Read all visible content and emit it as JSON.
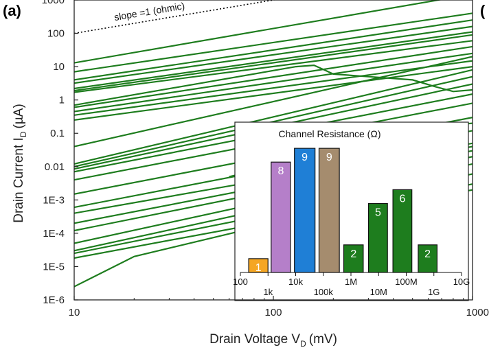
{
  "panel_label": "(a)",
  "next_panel_label": "(",
  "chart_data": {
    "type": "line",
    "x_scale": "log",
    "y_scale": "log",
    "xlim": [
      10,
      1000
    ],
    "ylim": [
      1e-06,
      1000
    ],
    "xlabel": "Drain Voltage V",
    "xlabel_sub": "D",
    "xlabel_unit": "(mV)",
    "ylabel": "Drain Current I",
    "ylabel_sub": "D",
    "ylabel_unit": "(µA)",
    "x_ticks": [
      {
        "value": 10,
        "label": "10"
      },
      {
        "value": 100,
        "label": "100"
      },
      {
        "value": 1000,
        "label": "1000"
      }
    ],
    "y_ticks": [
      {
        "value": 1000,
        "label": "1000"
      },
      {
        "value": 100,
        "label": "100"
      },
      {
        "value": 10,
        "label": "10"
      },
      {
        "value": 1,
        "label": "1"
      },
      {
        "value": 0.1,
        "label": "0.1"
      },
      {
        "value": 0.01,
        "label": "0.01"
      },
      {
        "value": 0.001,
        "label": "1E-3"
      },
      {
        "value": 0.0001,
        "label": "1E-4"
      },
      {
        "value": 1e-05,
        "label": "1E-5"
      },
      {
        "value": 1e-06,
        "label": "1E-6"
      }
    ],
    "line_color": "#1e7d1e",
    "reference_line": {
      "label": "slope =1 (ohmic)",
      "x": [
        10,
        200
      ],
      "y": [
        100,
        2000
      ],
      "style": "dotted"
    },
    "series": [
      {
        "x": [
          10,
          1000
        ],
        "y": [
          13,
          1500
        ]
      },
      {
        "x": [
          10,
          1000
        ],
        "y": [
          7,
          400
        ]
      },
      {
        "x": [
          10,
          1000
        ],
        "y": [
          4,
          250
        ]
      },
      {
        "x": [
          10,
          1000
        ],
        "y": [
          3.2,
          160
        ]
      },
      {
        "x": [
          10,
          1000
        ],
        "y": [
          2.2,
          110
        ]
      },
      {
        "x": [
          10,
          1000
        ],
        "y": [
          1.9,
          90
        ]
      },
      {
        "x": [
          10,
          1000
        ],
        "y": [
          1.7,
          60
        ]
      },
      {
        "x": [
          10,
          1000
        ],
        "y": [
          0.6,
          40
        ]
      },
      {
        "x": [
          10,
          1000
        ],
        "y": [
          0.45,
          25
        ]
      },
      {
        "x": [
          10,
          1000
        ],
        "y": [
          0.35,
          15
        ]
      },
      {
        "x": [
          10,
          1000
        ],
        "y": [
          0.25,
          10
        ]
      },
      {
        "x": [
          10,
          1000
        ],
        "y": [
          0.04,
          20
        ]
      },
      {
        "x": [
          10,
          1000
        ],
        "y": [
          0.012,
          8
        ]
      },
      {
        "x": [
          10,
          1000
        ],
        "y": [
          0.01,
          5
        ]
      },
      {
        "x": [
          10,
          1000
        ],
        "y": [
          0.0085,
          3
        ]
      },
      {
        "x": [
          10,
          1000
        ],
        "y": [
          0.007,
          1.5
        ]
      },
      {
        "x": [
          10,
          1000
        ],
        "y": [
          0.004,
          0.8
        ]
      },
      {
        "x": [
          10,
          1000
        ],
        "y": [
          0.0015,
          0.3
        ]
      },
      {
        "x": [
          10,
          1000
        ],
        "y": [
          0.0006,
          0.12
        ]
      },
      {
        "x": [
          10,
          1000
        ],
        "y": [
          0.0004,
          0.05
        ]
      },
      {
        "x": [
          10,
          1000
        ],
        "y": [
          0.0002,
          0.04
        ]
      },
      {
        "x": [
          10,
          1000
        ],
        "y": [
          0.00012,
          0.03
        ]
      },
      {
        "x": [
          10,
          1000
        ],
        "y": [
          5e-05,
          0.02
        ]
      },
      {
        "x": [
          10,
          1000
        ],
        "y": [
          3e-05,
          0.012
        ]
      },
      {
        "x": [
          10,
          1000
        ],
        "y": [
          2.5e-05,
          0.006
        ]
      },
      {
        "x": [
          10,
          1000
        ],
        "y": [
          1.8e-05,
          0.003
        ]
      },
      {
        "x": [
          10,
          20,
          100,
          1000
        ],
        "y": [
          2.5e-06,
          2e-05,
          0.0002,
          0.002
        ]
      },
      {
        "x": [
          10,
          130,
          160,
          180,
          200,
          300,
          500,
          650,
          800,
          1000
        ],
        "y": [
          0.7,
          10,
          11,
          8,
          6,
          5,
          4,
          2.5,
          1.8,
          2
        ]
      },
      {
        "x": [
          60,
          100,
          150,
          200,
          300,
          500,
          700,
          800,
          1000
        ],
        "y": [
          0.005,
          0.01,
          0.03,
          0.05,
          0.08,
          0.12,
          0.15,
          0.18,
          0.2
        ]
      }
    ],
    "inset": {
      "type": "bar",
      "title": "Channel Resistance (Ω)",
      "x_scale": "log",
      "xlim": [
        100,
        10000000000
      ],
      "tick_labels": [
        {
          "value": 100,
          "label": "100",
          "row": 0
        },
        {
          "value": 1000,
          "label": "1k",
          "row": 1
        },
        {
          "value": 10000,
          "label": "10k",
          "row": 0
        },
        {
          "value": 100000,
          "label": "100k",
          "row": 1
        },
        {
          "value": 1000000,
          "label": "1M",
          "row": 0
        },
        {
          "value": 10000000,
          "label": "10M",
          "row": 1
        },
        {
          "value": 100000000,
          "label": "100M",
          "row": 0
        },
        {
          "value": 1000000000,
          "label": "1G",
          "row": 1
        },
        {
          "value": 10000000000,
          "label": "10G",
          "row": 0
        }
      ],
      "bars": [
        {
          "bin": [
            200,
            1000
          ],
          "value": 1,
          "color": "#f5a623"
        },
        {
          "bin": [
            1300,
            6500
          ],
          "value": 8,
          "color": "#b57fc9"
        },
        {
          "bin": [
            9000,
            50000
          ],
          "value": 9,
          "color": "#1f7fd6"
        },
        {
          "bin": [
            70000,
            380000
          ],
          "value": 9,
          "color": "#a58c6e"
        },
        {
          "bin": [
            550000,
            2800000
          ],
          "value": 2,
          "color": "#1e7d1e"
        },
        {
          "bin": [
            4300000,
            21000000
          ],
          "value": 5,
          "color": "#1e7d1e"
        },
        {
          "bin": [
            33000000,
            160000000
          ],
          "value": 6,
          "color": "#1e7d1e"
        },
        {
          "bin": [
            270000000,
            1300000000
          ],
          "value": 2,
          "color": "#1e7d1e"
        }
      ]
    }
  }
}
